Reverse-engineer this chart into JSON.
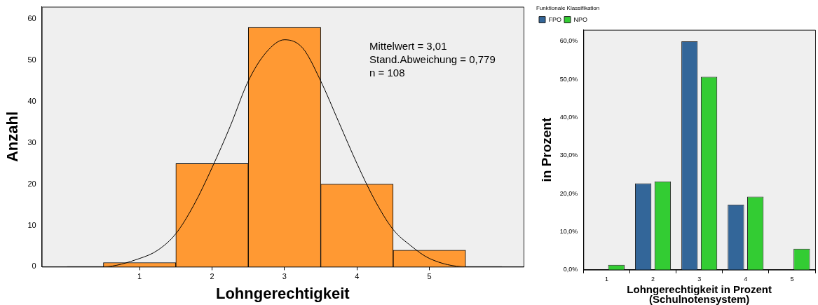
{
  "chart_data": [
    {
      "type": "histogram",
      "xlabel": "Lohngerechtigkeit",
      "ylabel": "Anzahl",
      "series": [
        {
          "type": "histogram",
          "bins": [
            0.5,
            1.5,
            2.5,
            3.5,
            4.5,
            5.5
          ],
          "values": [
            1,
            25,
            58,
            20,
            4
          ],
          "color": "#ff9933"
        },
        {
          "type": "line",
          "color": "#000000",
          "x": [
            0,
            0.5,
            1,
            1.25,
            1.5,
            1.75,
            2,
            2.25,
            2.5,
            2.75,
            3,
            3.25,
            3.5,
            3.75,
            4,
            4.25,
            4.5,
            4.75,
            5,
            5.5,
            6
          ],
          "values": [
            0,
            0,
            2,
            4,
            8,
            15,
            24,
            34,
            45,
            52,
            55,
            53,
            45,
            35,
            25,
            16,
            9,
            5,
            2,
            0,
            0
          ]
        }
      ],
      "xlim": [
        -0.35,
        6.3
      ],
      "xticks": [
        1,
        2,
        3,
        4,
        5
      ],
      "ylim": [
        0,
        63
      ],
      "yticks": [
        0,
        10,
        20,
        30,
        40,
        50,
        60
      ],
      "grid": false,
      "marker": "none",
      "annotations": [
        "Mittelwert = 3,01",
        "Stand.Abweichung = 0,779",
        "n = 108"
      ]
    },
    {
      "type": "bar",
      "xlabel": "Lohngerechtigkeit in Prozent\n(Schulnotensystem)",
      "ylabel": "in Prozent",
      "legend_title": "Funktionale Klassifikation",
      "categories": [
        "1",
        "2",
        "3",
        "4",
        "5"
      ],
      "series": [
        {
          "name": "FPO",
          "color": "#336699",
          "values": [
            0,
            22.7,
            60,
            17.1,
            0
          ]
        },
        {
          "name": "NPO",
          "color": "#33cc33",
          "values": [
            1.3,
            23.2,
            50.7,
            19.2,
            5.5
          ]
        }
      ],
      "ylim": [
        0,
        63
      ],
      "yticks": [
        {
          "value": 0,
          "label": "0,0%"
        },
        {
          "value": 10,
          "label": "10,0%"
        },
        {
          "value": 20,
          "label": "20,0%"
        },
        {
          "value": 30,
          "label": "30,0%"
        },
        {
          "value": 40,
          "label": "40,0%"
        },
        {
          "value": 50,
          "label": "50,0%"
        },
        {
          "value": 60,
          "label": "60,0%"
        }
      ],
      "grid": false,
      "legend": "top left"
    }
  ]
}
